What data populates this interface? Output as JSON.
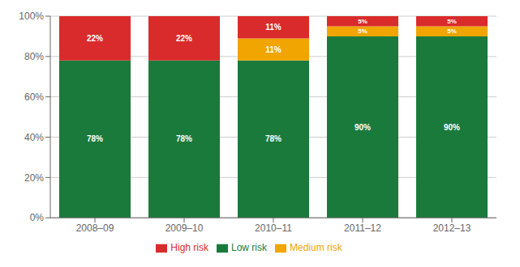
{
  "chart_data": {
    "type": "bar",
    "stacked": true,
    "categories": [
      "2008–09",
      "2009–10",
      "2010–11",
      "2011–12",
      "2012–13"
    ],
    "series": [
      {
        "name": "Low risk",
        "color": "#1a7a3c",
        "values": [
          78,
          78,
          78,
          90,
          90
        ],
        "value_labels": [
          "78%",
          "78%",
          "78%",
          "90%",
          "90%"
        ]
      },
      {
        "name": "Medium risk",
        "color": "#f0a500",
        "values": [
          0,
          0,
          11,
          5,
          5
        ],
        "value_labels": [
          null,
          null,
          "11%",
          "5%",
          "5%"
        ]
      },
      {
        "name": "High risk",
        "color": "#d92b2b",
        "values": [
          22,
          22,
          11,
          5,
          5
        ],
        "value_labels": [
          "22%",
          "22%",
          "11%",
          "5%",
          "5%"
        ]
      }
    ],
    "ylim": [
      0,
      100
    ],
    "yticks": [
      {
        "value": 0,
        "label": "0%"
      },
      {
        "value": 20,
        "label": "20%"
      },
      {
        "value": 40,
        "label": "40%"
      },
      {
        "value": 60,
        "label": "60%"
      },
      {
        "value": 80,
        "label": "80%"
      },
      {
        "value": 100,
        "label": "100%"
      }
    ],
    "grid": true,
    "legend": "bottom",
    "data_labels": true
  }
}
